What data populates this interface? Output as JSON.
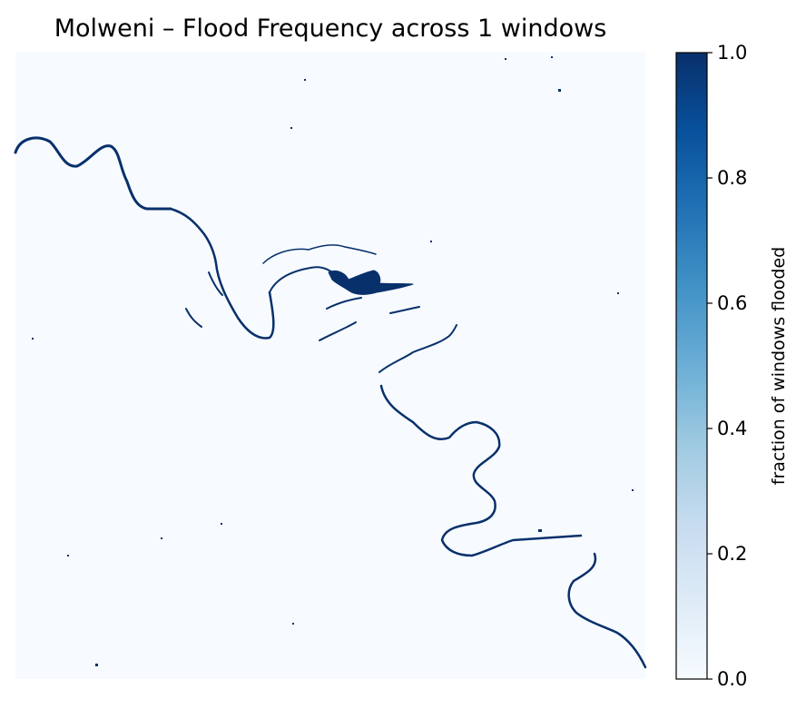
{
  "chart_data": {
    "type": "heatmap",
    "title": "Molweni – Flood Frequency across 1 windows",
    "colorbar": {
      "label": "fraction of windows flooded",
      "range": [
        0.0,
        1.0
      ],
      "ticks": [
        0.0,
        0.2,
        0.4,
        0.6,
        0.8,
        1.0
      ],
      "tick_labels": [
        "0.0",
        "0.2",
        "0.4",
        "0.6",
        "0.8",
        "1.0"
      ],
      "colormap": "Blues",
      "low_color": "#f7fbff",
      "high_color": "#08306b"
    },
    "axes_visible": false,
    "flooded_value": 1.0,
    "background_value": 0.0
  }
}
